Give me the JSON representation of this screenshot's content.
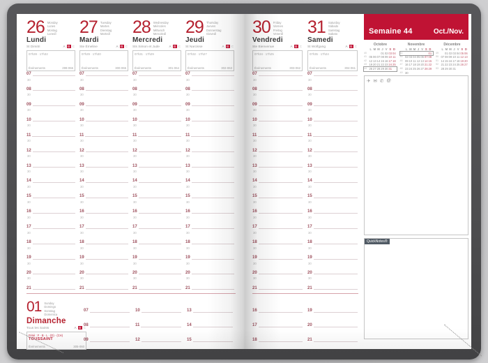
{
  "colors": {
    "accent_red": "#c01334",
    "day_number_red": "#b5212f",
    "hour_number_red": "#9d4f5c",
    "quicknotes_bg": "#505a64"
  },
  "meta": {
    "week_label": "Semaine 44",
    "month_label": "Oct./Nov."
  },
  "grid": {
    "half_label": "30",
    "weekday_hours": [
      "07",
      "08",
      "09",
      "10",
      "11",
      "12",
      "13",
      "14",
      "15",
      "16",
      "17",
      "18",
      "19",
      "20",
      "21"
    ]
  },
  "zones": [
    {
      "label": "A",
      "style": "plain"
    },
    {
      "label": "B",
      "style": "red"
    },
    {
      "label": "C",
      "style": "light"
    }
  ],
  "days": [
    {
      "number": "26",
      "names": [
        "Monday",
        "Lunes",
        "Montag",
        "Lunedì"
      ],
      "name_fr": "Lundi",
      "saint": "St Dimitri",
      "note": "07h28 · 17h32",
      "events_label": "Événements",
      "day_count": "299-066"
    },
    {
      "number": "27",
      "names": [
        "Tuesday",
        "Martes",
        "Dienstag",
        "Martedì"
      ],
      "name_fr": "Mardi",
      "saint": "Ste Émeline",
      "note": "07h29 · 17h30",
      "events_label": "Événements",
      "day_count": "300-065"
    },
    {
      "number": "28",
      "names": [
        "Wednesday",
        "Miércoles",
        "Mittwoch",
        "Mercoledì"
      ],
      "name_fr": "Mercredi",
      "saint": "Sts Simon et Jude",
      "note": "07h31 · 17h29",
      "events_label": "Événements",
      "day_count": "301-064"
    },
    {
      "number": "29",
      "names": [
        "Thursday",
        "Jueves",
        "Donnerstag",
        "Giovedì"
      ],
      "name_fr": "Jeudi",
      "saint": "St Narcisse",
      "note": "07h32 · 17h27",
      "events_label": "Événements",
      "day_count": "302-063"
    },
    {
      "number": "30",
      "names": [
        "Friday",
        "Viernes",
        "Freitag",
        "Venerdì"
      ],
      "name_fr": "Vendredi",
      "saint": "Ste Bienvenue",
      "note": "07h34 · 17h25",
      "events_label": "Événements",
      "day_count": "303-062"
    },
    {
      "number": "31",
      "names": [
        "Saturday",
        "Sábado",
        "Samstag",
        "Sabato"
      ],
      "name_fr": "Samedi",
      "saint": "St Wolfgang",
      "note": "07h35 · 17h24",
      "events_label": "Événements",
      "day_count": "304-061"
    }
  ],
  "sunday": {
    "number": "01",
    "names": [
      "Sunday",
      "Domingo",
      "Sonntag",
      "Domenica"
    ],
    "name_fr": "Dimanche",
    "saint": "Tous les Saints",
    "holiday_note": "Férié : F · B · L · (D) · (CH)",
    "holiday": "TOUSSAINT",
    "events_label": "Événements",
    "day_count": "305-060",
    "left_hour_groups": [
      [
        "07",
        "08",
        "09"
      ],
      [
        "10",
        "11",
        "12"
      ],
      [
        "13",
        "14",
        "15"
      ]
    ],
    "right_hour_groups": [
      [
        "16",
        "17",
        "18"
      ],
      [
        "19",
        "20",
        "21"
      ]
    ]
  },
  "sidebar": {
    "calendars": [
      {
        "title": "Octobre",
        "dow": [
          "L",
          "M",
          "M",
          "J",
          "V",
          "S",
          "D"
        ],
        "weeks": [
          {
            "num": "40",
            "days": [
              "",
              "",
              "",
              "01",
              "02",
              "03",
              "04"
            ],
            "hl": false
          },
          {
            "num": "41",
            "days": [
              "05",
              "06",
              "07",
              "08",
              "09",
              "10",
              "11"
            ],
            "hl": false
          },
          {
            "num": "42",
            "days": [
              "12",
              "13",
              "14",
              "15",
              "16",
              "17",
              "18"
            ],
            "hl": false
          },
          {
            "num": "43",
            "days": [
              "19",
              "20",
              "21",
              "22",
              "23",
              "24",
              "25"
            ],
            "hl": false
          },
          {
            "num": "44",
            "days": [
              "26",
              "27",
              "28",
              "29",
              "30",
              "31",
              ""
            ],
            "hl": true
          }
        ]
      },
      {
        "title": "Novembre",
        "dow": [
          "L",
          "M",
          "M",
          "J",
          "V",
          "S",
          "D"
        ],
        "weeks": [
          {
            "num": "44",
            "days": [
              "",
              "",
              "",
              "",
              "",
              "",
              "01"
            ],
            "hl": true
          },
          {
            "num": "45",
            "days": [
              "02",
              "03",
              "04",
              "05",
              "06",
              "07",
              "08"
            ],
            "hl": false
          },
          {
            "num": "46",
            "days": [
              "09",
              "10",
              "11",
              "12",
              "13",
              "14",
              "15"
            ],
            "hl": false
          },
          {
            "num": "47",
            "days": [
              "16",
              "17",
              "18",
              "19",
              "20",
              "21",
              "22"
            ],
            "hl": false
          },
          {
            "num": "48",
            "days": [
              "23",
              "24",
              "25",
              "26",
              "27",
              "28",
              "29"
            ],
            "hl": false
          },
          {
            "num": "49",
            "days": [
              "30",
              "",
              "",
              "",
              "",
              "",
              ""
            ],
            "hl": false
          }
        ]
      },
      {
        "title": "Décembre",
        "dow": [
          "L",
          "M",
          "M",
          "J",
          "V",
          "S",
          "D"
        ],
        "weeks": [
          {
            "num": "49",
            "days": [
              "",
              "01",
              "02",
              "03",
              "04",
              "05",
              "06"
            ],
            "hl": false
          },
          {
            "num": "50",
            "days": [
              "07",
              "08",
              "09",
              "10",
              "11",
              "12",
              "13"
            ],
            "hl": false
          },
          {
            "num": "51",
            "days": [
              "14",
              "15",
              "16",
              "17",
              "18",
              "19",
              "20"
            ],
            "hl": false
          },
          {
            "num": "52",
            "days": [
              "21",
              "22",
              "23",
              "24",
              "25",
              "26",
              "27"
            ],
            "hl": false
          },
          {
            "num": "53",
            "days": [
              "28",
              "29",
              "30",
              "31",
              "",
              "",
              ""
            ],
            "hl": false
          }
        ]
      }
    ],
    "notes_icons": [
      {
        "name": "plane-icon",
        "glyph": "✈"
      },
      {
        "name": "envelope-icon",
        "glyph": "✉"
      },
      {
        "name": "phone-icon",
        "glyph": "✆"
      },
      {
        "name": "at-icon",
        "glyph": "@"
      }
    ],
    "quicknotes_label": "QuickNotes®"
  }
}
